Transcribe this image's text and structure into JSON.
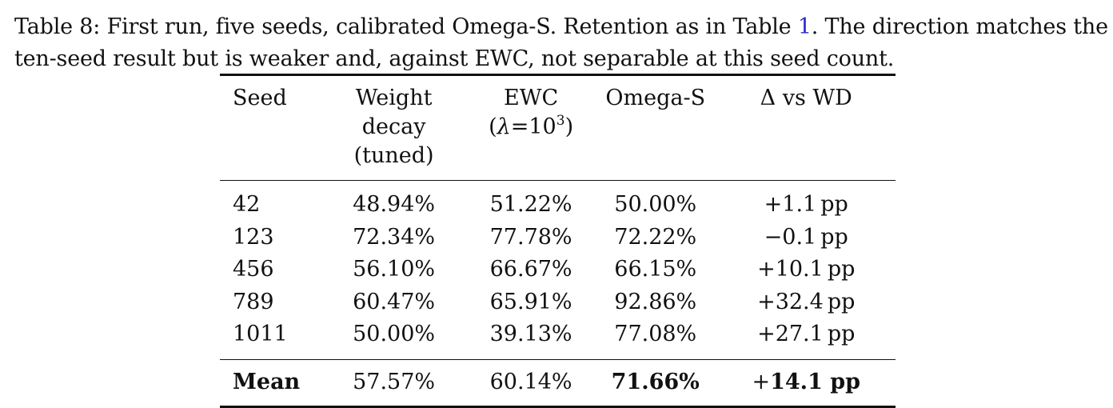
{
  "caption": {
    "label": "Table 8:",
    "text_before_ref": "First run, five seeds, calibrated Omega-S. Retention as in Table",
    "ref": "1",
    "text_after_ref": ". The direction matches the ten-seed result but is weaker and, against EWC, not separable at this seed count."
  },
  "table": {
    "headers": {
      "seed": "Seed",
      "wd_line1": "Weight decay",
      "wd_line2": "(tuned)",
      "ewc_line1": "EWC",
      "ewc_lambda": "λ",
      "ewc_eq": "=10",
      "ewc_exp": "3",
      "omega": "Omega-S",
      "delta": "Δ vs WD"
    },
    "rows": [
      {
        "seed": "42",
        "wd": "48.94%",
        "ewc": "51.22%",
        "omega": "50.00%",
        "delta": "+1.1",
        "unit": "pp"
      },
      {
        "seed": "123",
        "wd": "72.34%",
        "ewc": "77.78%",
        "omega": "72.22%",
        "delta": "−0.1",
        "unit": "pp"
      },
      {
        "seed": "456",
        "wd": "56.10%",
        "ewc": "66.67%",
        "omega": "66.15%",
        "delta": "+10.1",
        "unit": "pp"
      },
      {
        "seed": "789",
        "wd": "60.47%",
        "ewc": "65.91%",
        "omega": "92.86%",
        "delta": "+32.4",
        "unit": "pp"
      },
      {
        "seed": "1011",
        "wd": "50.00%",
        "ewc": "39.13%",
        "omega": "77.08%",
        "delta": "+27.1",
        "unit": "pp"
      }
    ],
    "mean": {
      "label": "Mean",
      "wd": "57.57%",
      "ewc": "60.14%",
      "omega": "71.66%",
      "delta_sign": "+",
      "delta": "14.1 pp"
    }
  }
}
